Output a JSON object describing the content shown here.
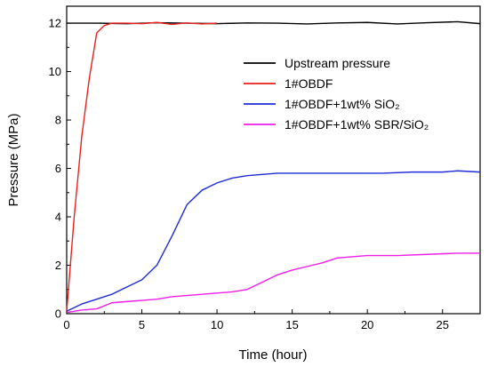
{
  "chart_data": {
    "type": "line",
    "title": "",
    "xlabel": "Time (hour)",
    "ylabel": "Pressure (MPa)",
    "xlim": [
      0,
      27.5
    ],
    "ylim": [
      0,
      12.7
    ],
    "xticks": [
      0,
      5,
      10,
      15,
      20,
      25
    ],
    "yticks": [
      0,
      2,
      4,
      6,
      8,
      10,
      12
    ],
    "grid": false,
    "legend_position": "top-right",
    "series": [
      {
        "name": "Upstream pressure",
        "color": "#000000",
        "x": [
          0,
          2,
          4,
          6,
          8,
          10,
          12,
          14,
          16,
          18,
          20,
          22,
          24,
          26,
          27.5
        ],
        "y": [
          12.0,
          12.0,
          11.98,
          12.02,
          12.0,
          11.98,
          12.01,
          12.0,
          11.97,
          12.01,
          12.03,
          11.97,
          12.02,
          12.06,
          11.98
        ]
      },
      {
        "name": "1#OBDF",
        "color": "#e8211e",
        "x": [
          0,
          0.5,
          1.0,
          1.5,
          2.0,
          2.5,
          3.0,
          4.0,
          5.0,
          6.0,
          7.0,
          8.0,
          9.0,
          10.0
        ],
        "y": [
          0.1,
          4.0,
          7.3,
          9.7,
          11.6,
          11.9,
          12.0,
          12.0,
          11.98,
          12.03,
          11.95,
          12.01,
          11.97,
          12.0
        ]
      },
      {
        "name": "1#OBDF+1wt% SiO₂",
        "color": "#1f2bd6",
        "x": [
          0,
          1,
          2,
          3,
          4,
          5,
          6,
          7,
          8,
          9,
          10,
          11,
          12,
          13,
          14,
          15,
          17,
          19,
          21,
          23,
          25,
          26,
          27.5
        ],
        "y": [
          0.1,
          0.4,
          0.6,
          0.8,
          1.1,
          1.4,
          2.0,
          3.2,
          4.5,
          5.1,
          5.4,
          5.6,
          5.7,
          5.75,
          5.8,
          5.8,
          5.8,
          5.8,
          5.8,
          5.85,
          5.85,
          5.9,
          5.85
        ]
      },
      {
        "name": "1#OBDF+1wt% SBR/SiO₂",
        "color": "#ee1ee6",
        "x": [
          0,
          1,
          2,
          3,
          4,
          5,
          6,
          7,
          8,
          9,
          10,
          11,
          12,
          13,
          14,
          15,
          16,
          17,
          18,
          19,
          20,
          22,
          24,
          26,
          27.5
        ],
        "y": [
          0.05,
          0.15,
          0.2,
          0.45,
          0.5,
          0.55,
          0.6,
          0.7,
          0.75,
          0.8,
          0.85,
          0.9,
          1.0,
          1.3,
          1.6,
          1.8,
          1.95,
          2.1,
          2.3,
          2.35,
          2.4,
          2.4,
          2.45,
          2.5,
          2.5
        ]
      }
    ]
  }
}
